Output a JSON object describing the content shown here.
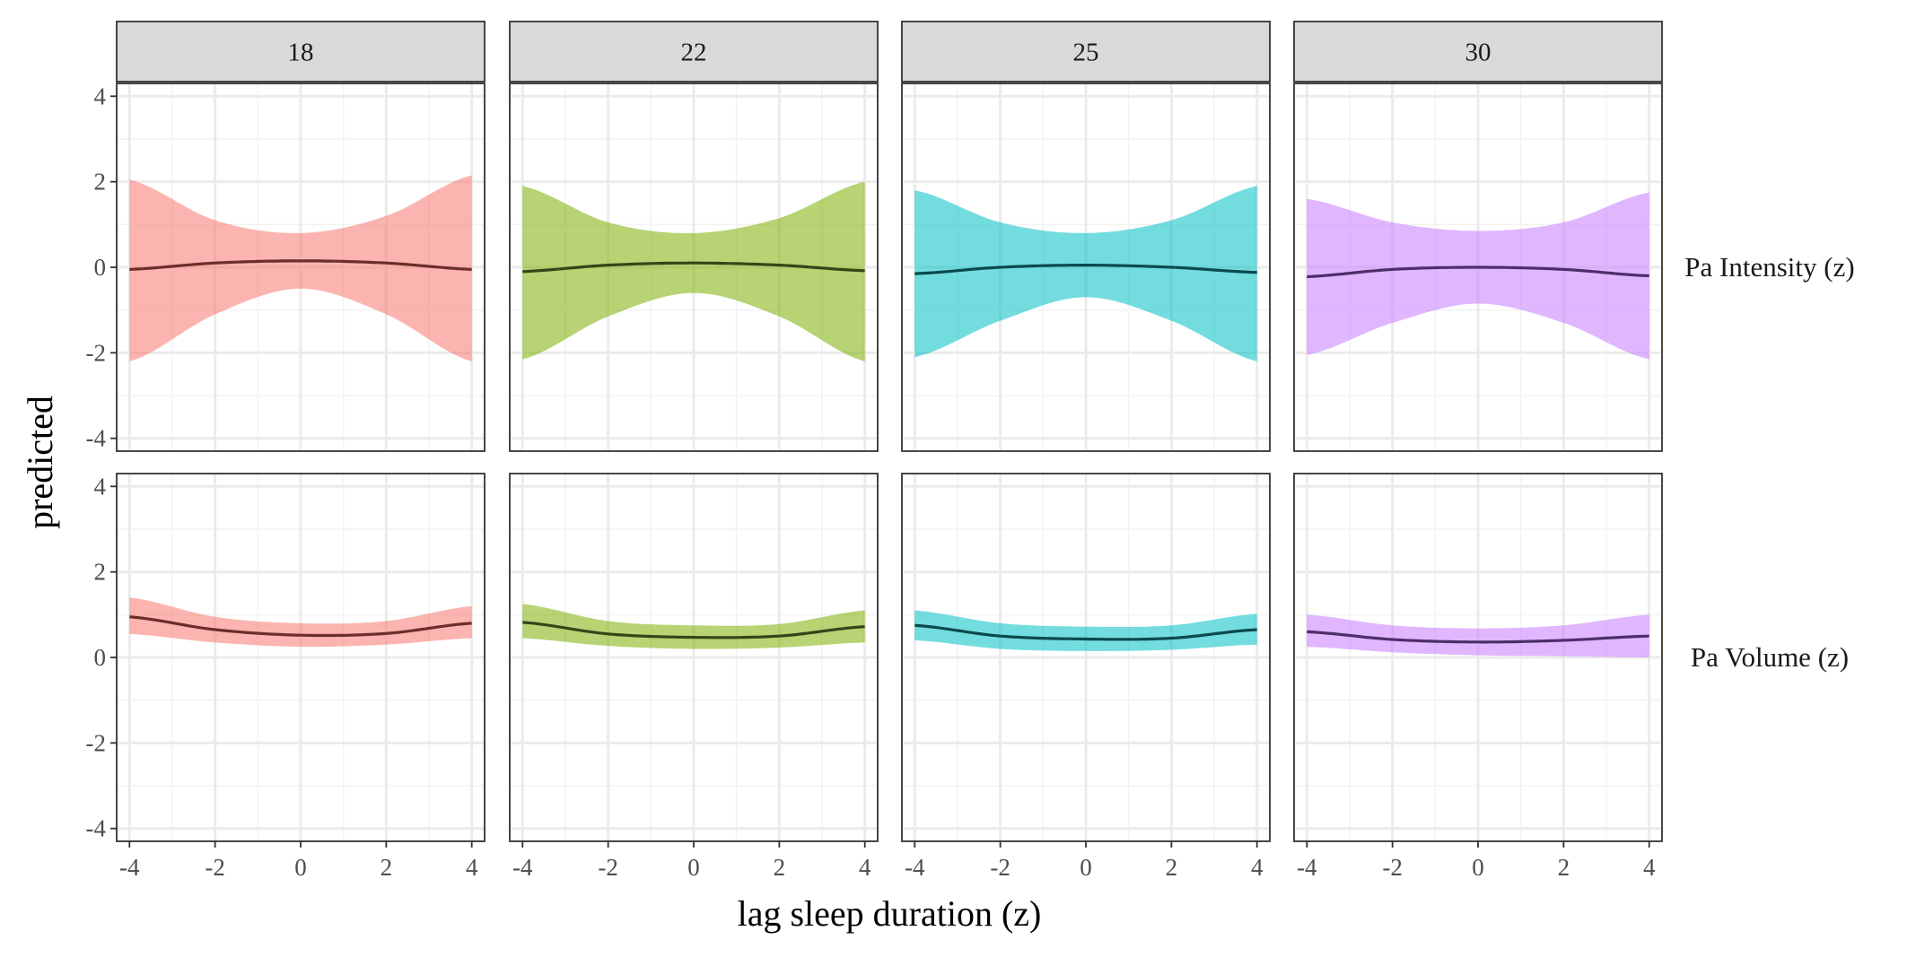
{
  "chart_data": {
    "type": "line",
    "xlabel": "lag sleep duration (z)",
    "ylabel": "predicted",
    "xlim": [
      -4.3,
      4.3
    ],
    "ylim": [
      -4.3,
      4.3
    ],
    "x_ticks": [
      -4,
      -2,
      0,
      2,
      4
    ],
    "y_ticks": [
      -4,
      -2,
      0,
      2,
      4
    ],
    "x_tick_labels": [
      "-4",
      "-2",
      "0",
      "2",
      "4"
    ],
    "y_tick_labels": [
      "-4",
      "-2",
      "0",
      "2",
      "4"
    ],
    "grid": true,
    "x": [
      -4,
      -2,
      0,
      2,
      4
    ],
    "columns": [
      {
        "label": "18",
        "color": "#F8766D",
        "line_color": "#6B2E2A"
      },
      {
        "label": "22",
        "color": "#7CAE00",
        "line_color": "#33461A"
      },
      {
        "label": "25",
        "color": "#00BFC4",
        "line_color": "#0B4A4C"
      },
      {
        "label": "30",
        "color": "#C77CFF",
        "line_color": "#4E2E6A"
      }
    ],
    "rows": [
      {
        "label": "Pa Intensity (z)",
        "panels": [
          {
            "fit": [
              -0.05,
              0.1,
              0.15,
              0.1,
              -0.05
            ],
            "lower": [
              -2.2,
              -1.1,
              -0.5,
              -1.1,
              -2.2
            ],
            "upper": [
              2.05,
              1.1,
              0.8,
              1.2,
              2.15
            ]
          },
          {
            "fit": [
              -0.1,
              0.05,
              0.1,
              0.05,
              -0.08
            ],
            "lower": [
              -2.15,
              -1.15,
              -0.6,
              -1.15,
              -2.2
            ],
            "upper": [
              1.9,
              1.05,
              0.8,
              1.15,
              2.0
            ]
          },
          {
            "fit": [
              -0.15,
              0.0,
              0.05,
              0.0,
              -0.12
            ],
            "lower": [
              -2.1,
              -1.25,
              -0.7,
              -1.25,
              -2.2
            ],
            "upper": [
              1.8,
              1.05,
              0.8,
              1.1,
              1.9
            ]
          },
          {
            "fit": [
              -0.22,
              -0.05,
              0.0,
              -0.05,
              -0.2
            ],
            "lower": [
              -2.05,
              -1.3,
              -0.85,
              -1.3,
              -2.15
            ],
            "upper": [
              1.6,
              1.05,
              0.85,
              1.05,
              1.75
            ]
          }
        ]
      },
      {
        "label": "Pa Volume (z)",
        "panels": [
          {
            "fit": [
              0.95,
              0.65,
              0.52,
              0.56,
              0.8
            ],
            "lower": [
              0.55,
              0.35,
              0.25,
              0.3,
              0.45
            ],
            "upper": [
              1.4,
              0.95,
              0.8,
              0.85,
              1.2
            ]
          },
          {
            "fit": [
              0.82,
              0.55,
              0.47,
              0.5,
              0.72
            ],
            "lower": [
              0.45,
              0.27,
              0.2,
              0.23,
              0.35
            ],
            "upper": [
              1.25,
              0.85,
              0.75,
              0.78,
              1.1
            ]
          },
          {
            "fit": [
              0.75,
              0.5,
              0.43,
              0.45,
              0.65
            ],
            "lower": [
              0.4,
              0.2,
              0.15,
              0.18,
              0.3
            ],
            "upper": [
              1.1,
              0.8,
              0.72,
              0.75,
              1.02
            ]
          },
          {
            "fit": [
              0.6,
              0.42,
              0.36,
              0.4,
              0.5
            ],
            "lower": [
              0.25,
              0.12,
              0.05,
              0.03,
              0.0
            ],
            "upper": [
              1.0,
              0.75,
              0.68,
              0.75,
              1.0
            ]
          }
        ]
      }
    ]
  }
}
